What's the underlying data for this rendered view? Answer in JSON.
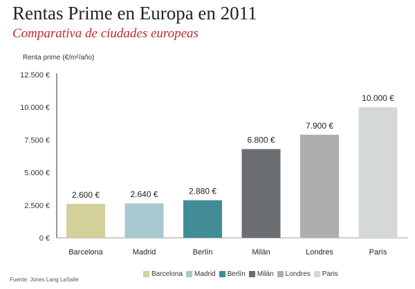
{
  "chart_data": {
    "type": "bar",
    "title": "Rentas Prime en Europa en 2011",
    "subtitle": "Comparativa de ciudades europeas",
    "ylabel": "Renta prime (€/m²/año)",
    "xlabel": "",
    "categories": [
      "Barcelona",
      "Madrid",
      "Berlín",
      "Milán",
      "Londres",
      "París"
    ],
    "values": [
      2600,
      2640,
      2880,
      6800,
      7900,
      10000
    ],
    "data_labels": [
      "2.600 €",
      "2.640 €",
      "2.880 €",
      "6.800 €",
      "7.900 €",
      "10.000 €"
    ],
    "colors": [
      "#d3d09a",
      "#a8c8d0",
      "#418c97",
      "#6b6e70",
      "#adafaf",
      "#d5d8d8"
    ],
    "ylim": [
      0,
      12500
    ],
    "yticks": [
      0,
      2500,
      5000,
      7500,
      10000,
      12500
    ],
    "ytick_labels": [
      "0 €",
      "2.500 €",
      "5.000 €",
      "7.500 €",
      "10.000 €",
      "12.500 €"
    ],
    "grid": false,
    "legend_position": "bottom",
    "legend": [
      "Barcelona",
      "Madrid",
      "Berlín",
      "Milán",
      "Londres",
      "Paris"
    ],
    "source": "Fuente: Jones Lang LaSalle"
  }
}
